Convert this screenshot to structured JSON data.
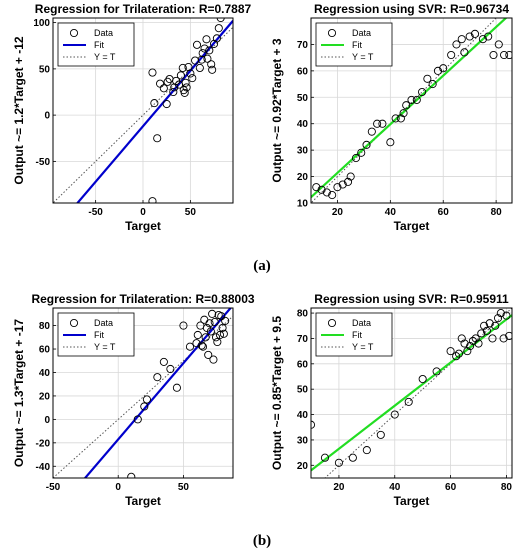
{
  "captions": [
    "(a)",
    "(b)"
  ],
  "colors": {
    "tri_fit": "#0000cc",
    "svr_fit": "#22dd22",
    "grid": "#d8d8d8",
    "marker": "#000000"
  },
  "chart_data": [
    {
      "type": "scatter",
      "title": "Regression for Trilateration: R=0.7887",
      "xlabel": "Target",
      "ylabel": "Output ~= 1.2*Target + -12",
      "xlim": [
        -95,
        95
      ],
      "ylim": [
        -95,
        105
      ],
      "xticks": [
        -50,
        0,
        50
      ],
      "yticks": [
        -50,
        0,
        50,
        100
      ],
      "grid": true,
      "legend_position": "top-left",
      "legend": [
        "Data",
        "Fit",
        "Y = T"
      ],
      "fit": {
        "slope": 1.2,
        "intercept": -12
      },
      "points": [
        [
          10,
          46
        ],
        [
          12,
          13
        ],
        [
          15,
          -25
        ],
        [
          18,
          34
        ],
        [
          22,
          29
        ],
        [
          25,
          12
        ],
        [
          26,
          36
        ],
        [
          28,
          39
        ],
        [
          32,
          25
        ],
        [
          33,
          30
        ],
        [
          35,
          37
        ],
        [
          38,
          33
        ],
        [
          40,
          43
        ],
        [
          42,
          51
        ],
        [
          43,
          27
        ],
        [
          44,
          24
        ],
        [
          45,
          35
        ],
        [
          46,
          30
        ],
        [
          48,
          52
        ],
        [
          50,
          45
        ],
        [
          52,
          40
        ],
        [
          55,
          59
        ],
        [
          57,
          76
        ],
        [
          60,
          51
        ],
        [
          62,
          60
        ],
        [
          63,
          67
        ],
        [
          65,
          72
        ],
        [
          67,
          82
        ],
        [
          68,
          61
        ],
        [
          70,
          70
        ],
        [
          72,
          55
        ],
        [
          73,
          49
        ],
        [
          75,
          77
        ],
        [
          78,
          83
        ],
        [
          80,
          94
        ],
        [
          82,
          105
        ],
        [
          10,
          -93
        ]
      ]
    },
    {
      "type": "scatter",
      "title": "Regression using SVR: R=0.96734",
      "xlabel": "Target",
      "ylabel": "Output ~= 0.92*Target + 3",
      "xlim": [
        10,
        86
      ],
      "ylim": [
        10,
        80
      ],
      "xticks": [
        20,
        40,
        60,
        80
      ],
      "yticks": [
        10,
        20,
        30,
        40,
        50,
        60,
        70
      ],
      "grid": true,
      "legend_position": "top-left",
      "legend": [
        "Data",
        "Fit",
        "Y = T"
      ],
      "fit": {
        "slope": 0.92,
        "intercept": 3
      },
      "points": [
        [
          12,
          16
        ],
        [
          14,
          15
        ],
        [
          16,
          14
        ],
        [
          18,
          13
        ],
        [
          20,
          16
        ],
        [
          22,
          17
        ],
        [
          24,
          18
        ],
        [
          25,
          20
        ],
        [
          27,
          27
        ],
        [
          29,
          29
        ],
        [
          31,
          32
        ],
        [
          33,
          37
        ],
        [
          35,
          40
        ],
        [
          37,
          40
        ],
        [
          40,
          33
        ],
        [
          42,
          42
        ],
        [
          44,
          42
        ],
        [
          45,
          44
        ],
        [
          46,
          47
        ],
        [
          48,
          49
        ],
        [
          50,
          49
        ],
        [
          52,
          52
        ],
        [
          54,
          57
        ],
        [
          56,
          55
        ],
        [
          58,
          60
        ],
        [
          60,
          61
        ],
        [
          63,
          66
        ],
        [
          65,
          70
        ],
        [
          67,
          72
        ],
        [
          68,
          67
        ],
        [
          70,
          73
        ],
        [
          72,
          74
        ],
        [
          75,
          72
        ],
        [
          77,
          73
        ],
        [
          79,
          66
        ],
        [
          81,
          70
        ],
        [
          83,
          66
        ],
        [
          85,
          66
        ]
      ]
    },
    {
      "type": "scatter",
      "title": "Regression for Trilateration: R=0.88003",
      "xlabel": "Target",
      "ylabel": "Output ~= 1.3*Target + -17",
      "xlim": [
        -50,
        88
      ],
      "ylim": [
        -50,
        95
      ],
      "xticks": [
        -50,
        0,
        50
      ],
      "yticks": [
        -40,
        -20,
        0,
        20,
        40,
        60,
        80
      ],
      "grid": true,
      "legend_position": "top-left",
      "legend": [
        "Data",
        "Fit",
        "Y = T"
      ],
      "fit": {
        "slope": 1.3,
        "intercept": -17
      },
      "points": [
        [
          10,
          -49
        ],
        [
          15,
          0
        ],
        [
          20,
          11
        ],
        [
          22,
          17
        ],
        [
          30,
          36
        ],
        [
          35,
          49
        ],
        [
          40,
          43
        ],
        [
          45,
          27
        ],
        [
          50,
          80
        ],
        [
          55,
          62
        ],
        [
          60,
          65
        ],
        [
          61,
          72
        ],
        [
          63,
          80
        ],
        [
          64,
          63
        ],
        [
          65,
          62
        ],
        [
          66,
          85
        ],
        [
          67,
          70
        ],
        [
          68,
          78
        ],
        [
          69,
          55
        ],
        [
          70,
          82
        ],
        [
          71,
          75
        ],
        [
          72,
          90
        ],
        [
          73,
          51
        ],
        [
          74,
          83
        ],
        [
          75,
          70
        ],
        [
          76,
          66
        ],
        [
          77,
          89
        ],
        [
          78,
          72
        ],
        [
          79,
          88
        ],
        [
          80,
          78
        ],
        [
          81,
          73
        ],
        [
          82,
          84
        ]
      ]
    },
    {
      "type": "scatter",
      "title": "Regression using SVR: R=0.95911",
      "xlabel": "Target",
      "ylabel": "Output ~= 0.85*Target + 9.5",
      "xlim": [
        10,
        82
      ],
      "ylim": [
        15,
        82
      ],
      "xticks": [
        20,
        40,
        60,
        80
      ],
      "yticks": [
        20,
        30,
        40,
        50,
        60,
        70,
        80
      ],
      "grid": true,
      "legend_position": "top-left",
      "legend": [
        "Data",
        "Fit",
        "Y = T"
      ],
      "fit": {
        "slope": 0.85,
        "intercept": 9.5
      },
      "points": [
        [
          10,
          36
        ],
        [
          15,
          23
        ],
        [
          20,
          21
        ],
        [
          25,
          23
        ],
        [
          30,
          26
        ],
        [
          35,
          32
        ],
        [
          40,
          40
        ],
        [
          45,
          45
        ],
        [
          50,
          54
        ],
        [
          55,
          57
        ],
        [
          60,
          65
        ],
        [
          62,
          63
        ],
        [
          63,
          64
        ],
        [
          64,
          70
        ],
        [
          65,
          68
        ],
        [
          66,
          65
        ],
        [
          67,
          67
        ],
        [
          68,
          69
        ],
        [
          69,
          70
        ],
        [
          70,
          68
        ],
        [
          71,
          72
        ],
        [
          72,
          75
        ],
        [
          73,
          73
        ],
        [
          74,
          76
        ],
        [
          75,
          70
        ],
        [
          76,
          75
        ],
        [
          77,
          78
        ],
        [
          78,
          80
        ],
        [
          79,
          70
        ],
        [
          80,
          79
        ],
        [
          81,
          71
        ]
      ]
    }
  ]
}
